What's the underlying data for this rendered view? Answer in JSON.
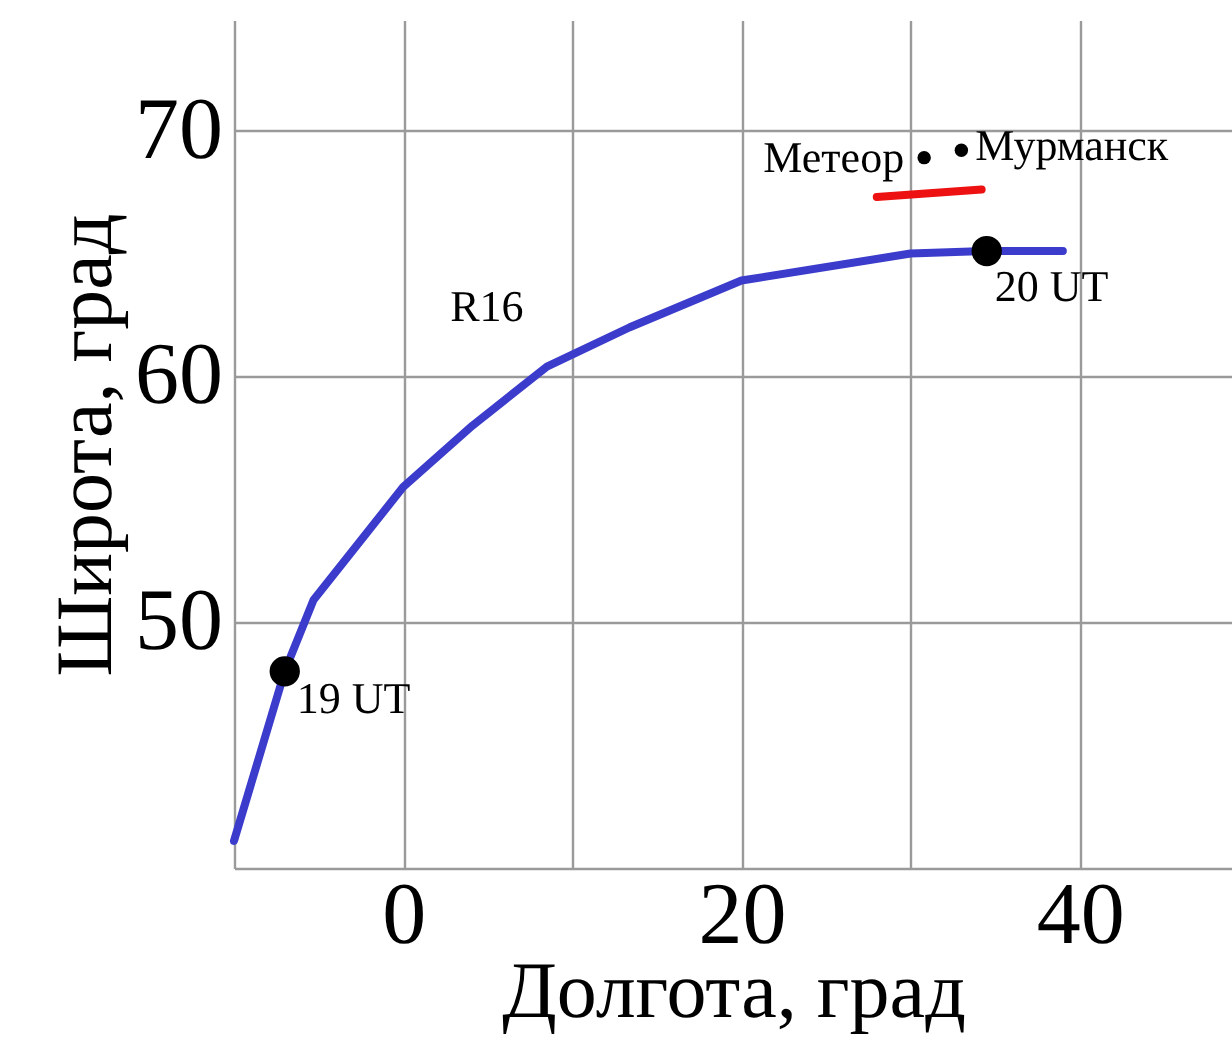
{
  "chart_data": {
    "type": "line",
    "xlabel": "Долгота, град",
    "ylabel": "Широта, град",
    "xlim": [
      -10,
      49
    ],
    "ylim": [
      40,
      74.5
    ],
    "xticks": [
      {
        "value": -10,
        "label": null
      },
      0,
      {
        "value": 10,
        "label": null
      },
      20,
      {
        "value": 30,
        "label": null
      },
      40
    ],
    "yticks": [
      {
        "value": 40,
        "label": null
      },
      50,
      60,
      70
    ],
    "grid": true,
    "marker": "none",
    "line_style": "solid",
    "series": [
      {
        "name": "R16",
        "color": "#3c3ccc",
        "x": [
          -10,
          -7.0,
          -5.3,
          0,
          4.1,
          8.5,
          13.4,
          20,
          30,
          34.4,
          39.0
        ],
        "values": [
          41.1,
          48.0,
          50.9,
          55.5,
          58.0,
          60.4,
          62.0,
          63.9,
          65.0,
          65.1,
          65.1
        ]
      },
      {
        "color": "#ee1111",
        "x": [
          28.0,
          34.2
        ],
        "values": [
          67.3,
          67.6
        ]
      },
      {
        "color": "#000000",
        "type": "scatter",
        "marker": "circle",
        "x": [
          -7.0,
          34.5
        ],
        "values": [
          48.0,
          65.1
        ]
      },
      {
        "color": "#000000",
        "type": "scatter",
        "marker": "circle",
        "x": [
          30.8,
          33.0
        ],
        "values": [
          68.9,
          69.2
        ]
      }
    ],
    "annotations": [
      {
        "text": "19 UT",
        "x": -7.0,
        "y": 48.0
      },
      {
        "text": "20 UT",
        "x": 34.5,
        "y": 65.1
      },
      {
        "text": "Метеор",
        "x": 30.8,
        "y": 68.9
      },
      {
        "text": "Мурманск",
        "x": 33.0,
        "y": 69.2
      }
    ]
  }
}
